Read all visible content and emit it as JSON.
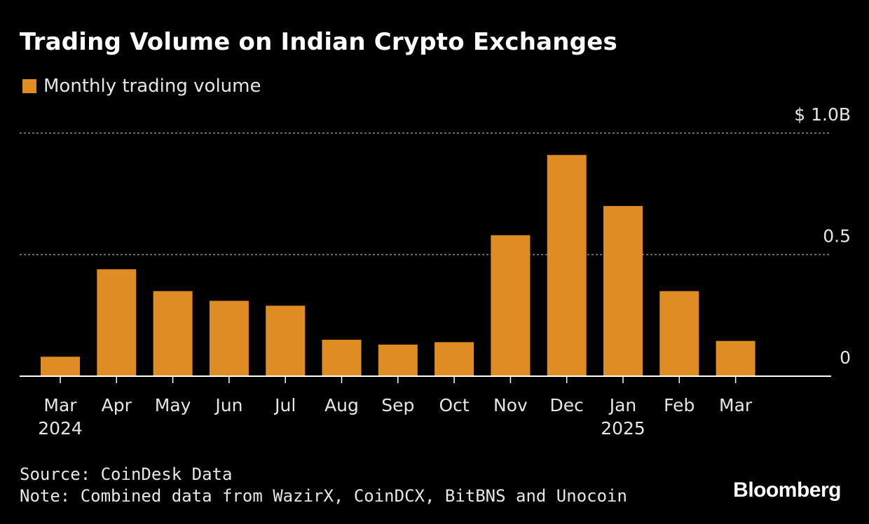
{
  "title": "Trading Volume on Indian Crypto Exchanges",
  "legend": {
    "label": "Monthly trading volume"
  },
  "colors": {
    "bar": "#e08c24",
    "background": "#000000",
    "text": "#e6e6e6",
    "grid": "#8c8c8c"
  },
  "footer": {
    "source": "Source: CoinDesk Data",
    "note": "Note: Combined data from WazirX, CoinDCX, BitBNS and Unocoin"
  },
  "brand": "Bloomberg",
  "chart_data": {
    "type": "bar",
    "title": "Trading Volume on Indian Crypto Exchanges",
    "categories": [
      "Mar",
      "Apr",
      "May",
      "Jun",
      "Jul",
      "Aug",
      "Sep",
      "Oct",
      "Nov",
      "Dec",
      "Jan",
      "Feb",
      "Mar"
    ],
    "year_labels": [
      "2024",
      "",
      "",
      "",
      "",
      "",
      "",
      "",
      "",
      "",
      "2025",
      "",
      ""
    ],
    "series": [
      {
        "name": "Monthly trading volume",
        "values": [
          0.08,
          0.44,
          0.35,
          0.31,
          0.29,
          0.15,
          0.13,
          0.14,
          0.58,
          0.91,
          0.7,
          0.35,
          0.145
        ]
      }
    ],
    "yticks": [
      {
        "value": 0,
        "label": "0"
      },
      {
        "value": 0.5,
        "label": "0.5"
      },
      {
        "value": 1.0,
        "label": "$ 1.0B"
      }
    ],
    "ylim": [
      0,
      1.0
    ],
    "grid": true,
    "axis_side": "right",
    "legend_position": "top-left"
  }
}
